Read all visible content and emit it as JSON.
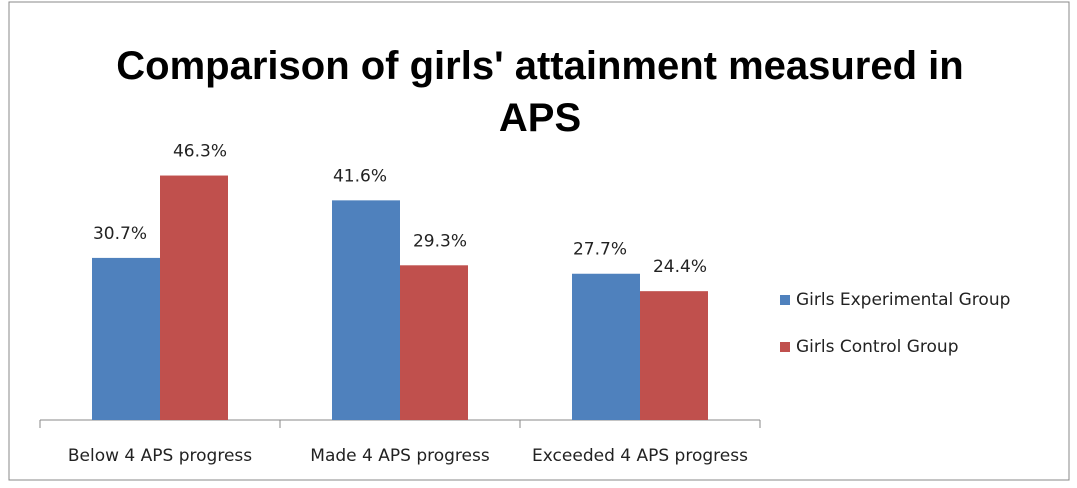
{
  "chart_data": {
    "type": "bar",
    "title": "Comparison of girls' attainment measured in APS",
    "categories": [
      "Below 4 APS progress",
      "Made 4 APS progress",
      "Exceeded 4 APS progress"
    ],
    "series": [
      {
        "name": "Girls Experimental Group",
        "color": "#4f81bd",
        "values": [
          30.7,
          41.6,
          27.7
        ],
        "value_labels": [
          "30.7%",
          "41.6%",
          "27.7%"
        ]
      },
      {
        "name": "Girls Control Group",
        "color": "#c0504d",
        "values": [
          46.3,
          29.3,
          24.4
        ],
        "value_labels": [
          "46.3%",
          "29.3%",
          "24.4%"
        ]
      }
    ],
    "ylim": [
      0,
      50
    ],
    "legend": "right"
  }
}
